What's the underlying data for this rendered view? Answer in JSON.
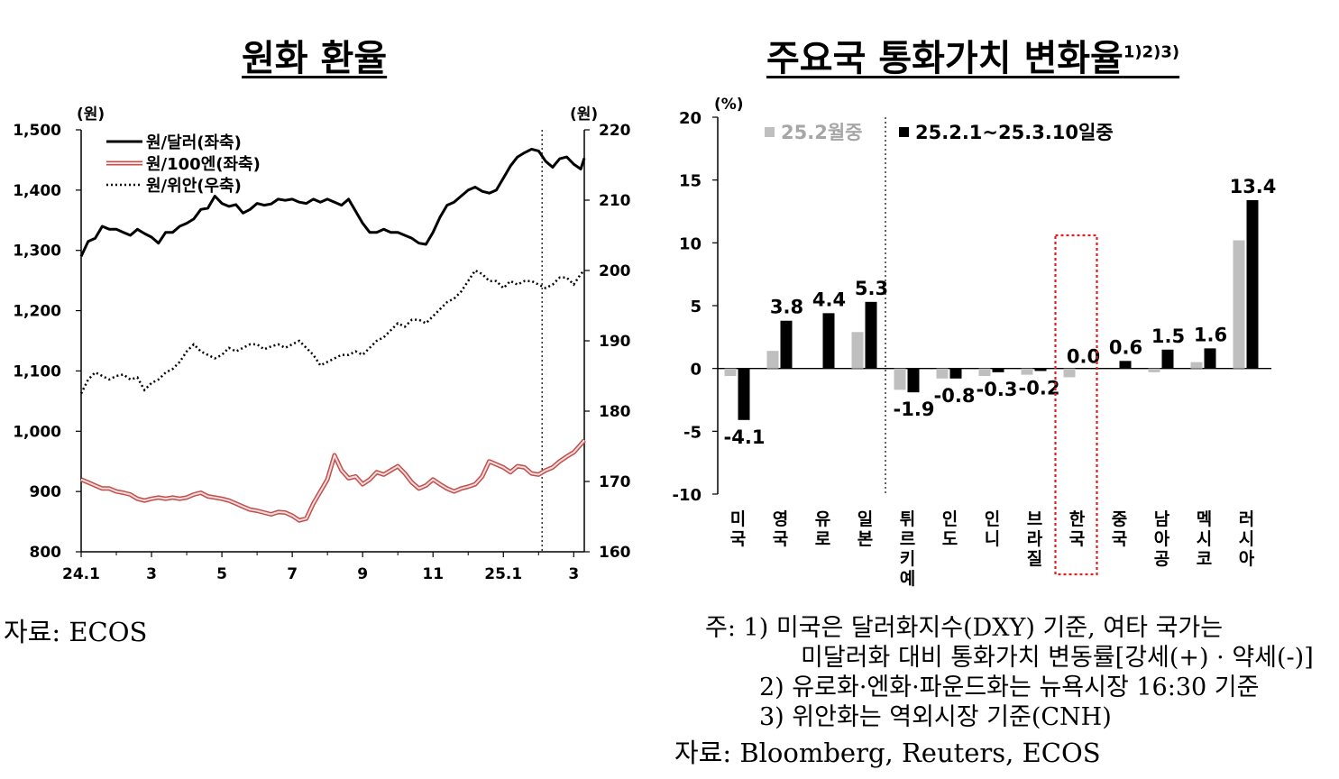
{
  "chart_data": [
    {
      "type": "line",
      "title": "원화 환율",
      "y_left_unit": "(원)",
      "y_right_unit": "(원)",
      "y_left_ticks": [
        "1,500",
        "1,400",
        "1,300",
        "1,200",
        "1,100",
        "1,000",
        "900",
        "800"
      ],
      "y_right_ticks": [
        "220",
        "210",
        "200",
        "190",
        "180",
        "170",
        "160"
      ],
      "ylim_left": [
        800,
        1500
      ],
      "ylim_right": [
        160,
        220
      ],
      "x_ticks": [
        "24.1",
        "3",
        "5",
        "7",
        "9",
        "11",
        "25.1",
        "3"
      ],
      "x_tick_pos": [
        0,
        2,
        4,
        6,
        8,
        10,
        12,
        14
      ],
      "x_range": [
        0,
        14.3
      ],
      "divider_x": 13.1,
      "legend": [
        "원/달러(좌축)",
        "원/100엔(좌축)",
        "원/위안(우축)"
      ],
      "series": [
        {
          "name": "원/달러(좌축)",
          "axis": "left",
          "style": "solid-black",
          "points": [
            [
              0,
              1290
            ],
            [
              0.2,
              1315
            ],
            [
              0.4,
              1320
            ],
            [
              0.6,
              1340
            ],
            [
              0.8,
              1335
            ],
            [
              1.0,
              1335
            ],
            [
              1.2,
              1330
            ],
            [
              1.4,
              1325
            ],
            [
              1.6,
              1335
            ],
            [
              1.8,
              1328
            ],
            [
              2.0,
              1322
            ],
            [
              2.2,
              1312
            ],
            [
              2.4,
              1330
            ],
            [
              2.6,
              1330
            ],
            [
              2.8,
              1340
            ],
            [
              3.0,
              1345
            ],
            [
              3.2,
              1352
            ],
            [
              3.4,
              1368
            ],
            [
              3.6,
              1370
            ],
            [
              3.8,
              1390
            ],
            [
              4.0,
              1378
            ],
            [
              4.2,
              1373
            ],
            [
              4.4,
              1376
            ],
            [
              4.6,
              1362
            ],
            [
              4.8,
              1368
            ],
            [
              5.0,
              1378
            ],
            [
              5.2,
              1375
            ],
            [
              5.4,
              1377
            ],
            [
              5.6,
              1385
            ],
            [
              5.8,
              1383
            ],
            [
              6.0,
              1385
            ],
            [
              6.2,
              1380
            ],
            [
              6.4,
              1378
            ],
            [
              6.6,
              1385
            ],
            [
              6.8,
              1380
            ],
            [
              7.0,
              1385
            ],
            [
              7.2,
              1380
            ],
            [
              7.4,
              1375
            ],
            [
              7.6,
              1385
            ],
            [
              7.8,
              1365
            ],
            [
              8.0,
              1345
            ],
            [
              8.2,
              1330
            ],
            [
              8.4,
              1330
            ],
            [
              8.6,
              1335
            ],
            [
              8.8,
              1330
            ],
            [
              9.0,
              1330
            ],
            [
              9.2,
              1325
            ],
            [
              9.4,
              1320
            ],
            [
              9.6,
              1312
            ],
            [
              9.8,
              1310
            ],
            [
              10.0,
              1330
            ],
            [
              10.2,
              1355
            ],
            [
              10.4,
              1375
            ],
            [
              10.6,
              1380
            ],
            [
              10.8,
              1390
            ],
            [
              11.0,
              1400
            ],
            [
              11.2,
              1405
            ],
            [
              11.4,
              1398
            ],
            [
              11.6,
              1395
            ],
            [
              11.8,
              1400
            ],
            [
              12.0,
              1420
            ],
            [
              12.2,
              1440
            ],
            [
              12.4,
              1455
            ],
            [
              12.6,
              1462
            ],
            [
              12.8,
              1468
            ],
            [
              13.0,
              1465
            ],
            [
              13.2,
              1448
            ],
            [
              13.4,
              1438
            ],
            [
              13.6,
              1452
            ],
            [
              13.8,
              1455
            ],
            [
              14.0,
              1443
            ],
            [
              14.2,
              1435
            ],
            [
              14.3,
              1453
            ]
          ]
        },
        {
          "name": "원/100엔(좌축)",
          "axis": "left",
          "style": "double-red",
          "points": [
            [
              0,
              920
            ],
            [
              0.2,
              915
            ],
            [
              0.4,
              910
            ],
            [
              0.6,
              905
            ],
            [
              0.8,
              905
            ],
            [
              1.0,
              900
            ],
            [
              1.2,
              898
            ],
            [
              1.4,
              895
            ],
            [
              1.6,
              888
            ],
            [
              1.8,
              885
            ],
            [
              2.0,
              888
            ],
            [
              2.2,
              890
            ],
            [
              2.4,
              888
            ],
            [
              2.6,
              890
            ],
            [
              2.8,
              888
            ],
            [
              3.0,
              890
            ],
            [
              3.2,
              895
            ],
            [
              3.4,
              898
            ],
            [
              3.6,
              892
            ],
            [
              3.8,
              890
            ],
            [
              4.0,
              888
            ],
            [
              4.2,
              885
            ],
            [
              4.4,
              880
            ],
            [
              4.6,
              875
            ],
            [
              4.8,
              870
            ],
            [
              5.0,
              868
            ],
            [
              5.2,
              865
            ],
            [
              5.4,
              862
            ],
            [
              5.6,
              866
            ],
            [
              5.8,
              865
            ],
            [
              6.0,
              860
            ],
            [
              6.2,
              852
            ],
            [
              6.4,
              855
            ],
            [
              6.6,
              880
            ],
            [
              6.8,
              900
            ],
            [
              7.0,
              920
            ],
            [
              7.2,
              960
            ],
            [
              7.4,
              935
            ],
            [
              7.6,
              922
            ],
            [
              7.8,
              925
            ],
            [
              8.0,
              912
            ],
            [
              8.2,
              920
            ],
            [
              8.4,
              932
            ],
            [
              8.6,
              928
            ],
            [
              8.8,
              935
            ],
            [
              9.0,
              942
            ],
            [
              9.2,
              930
            ],
            [
              9.4,
              915
            ],
            [
              9.6,
              905
            ],
            [
              9.8,
              910
            ],
            [
              10.0,
              920
            ],
            [
              10.2,
              912
            ],
            [
              10.4,
              905
            ],
            [
              10.6,
              900
            ],
            [
              10.8,
              905
            ],
            [
              11.0,
              908
            ],
            [
              11.2,
              912
            ],
            [
              11.4,
              925
            ],
            [
              11.6,
              950
            ],
            [
              11.8,
              945
            ],
            [
              12.0,
              940
            ],
            [
              12.2,
              932
            ],
            [
              12.4,
              942
            ],
            [
              12.6,
              940
            ],
            [
              12.8,
              930
            ],
            [
              13.0,
              928
            ],
            [
              13.2,
              935
            ],
            [
              13.4,
              940
            ],
            [
              13.6,
              950
            ],
            [
              13.8,
              958
            ],
            [
              14.0,
              965
            ],
            [
              14.2,
              978
            ],
            [
              14.3,
              985
            ]
          ]
        },
        {
          "name": "원/위안(우축)",
          "axis": "right",
          "style": "dotted-black",
          "points": [
            [
              0,
              182.5
            ],
            [
              0.2,
              184.5
            ],
            [
              0.4,
              185.5
            ],
            [
              0.6,
              185
            ],
            [
              0.8,
              184.5
            ],
            [
              1.0,
              185
            ],
            [
              1.2,
              185.2
            ],
            [
              1.4,
              184.5
            ],
            [
              1.6,
              184.8
            ],
            [
              1.8,
              183
            ],
            [
              2.0,
              184
            ],
            [
              2.2,
              184.5
            ],
            [
              2.4,
              185.5
            ],
            [
              2.6,
              186
            ],
            [
              2.8,
              187
            ],
            [
              3.0,
              188.5
            ],
            [
              3.2,
              189.5
            ],
            [
              3.4,
              188.5
            ],
            [
              3.6,
              188
            ],
            [
              3.8,
              187.5
            ],
            [
              4.0,
              188
            ],
            [
              4.2,
              189
            ],
            [
              4.4,
              188.5
            ],
            [
              4.6,
              189
            ],
            [
              4.8,
              189.5
            ],
            [
              5.0,
              189.5
            ],
            [
              5.2,
              188.8
            ],
            [
              5.4,
              189.2
            ],
            [
              5.6,
              189.5
            ],
            [
              5.8,
              189
            ],
            [
              6.0,
              189.5
            ],
            [
              6.2,
              190
            ],
            [
              6.4,
              189
            ],
            [
              6.6,
              188
            ],
            [
              6.8,
              186.5
            ],
            [
              7.0,
              187
            ],
            [
              7.2,
              187.5
            ],
            [
              7.4,
              188
            ],
            [
              7.6,
              188
            ],
            [
              7.8,
              188.5
            ],
            [
              8.0,
              188
            ],
            [
              8.2,
              189
            ],
            [
              8.4,
              190
            ],
            [
              8.6,
              190.5
            ],
            [
              8.8,
              191.5
            ],
            [
              9.0,
              192.5
            ],
            [
              9.2,
              192
            ],
            [
              9.4,
              193
            ],
            [
              9.6,
              193
            ],
            [
              9.8,
              192.5
            ],
            [
              10.0,
              193.5
            ],
            [
              10.2,
              194.5
            ],
            [
              10.4,
              195.5
            ],
            [
              10.6,
              196
            ],
            [
              10.8,
              197
            ],
            [
              11.0,
              198.5
            ],
            [
              11.2,
              200
            ],
            [
              11.4,
              199.5
            ],
            [
              11.6,
              198.5
            ],
            [
              11.8,
              198.5
            ],
            [
              12.0,
              197.5
            ],
            [
              12.2,
              198.5
            ],
            [
              12.4,
              198
            ],
            [
              12.6,
              198.5
            ],
            [
              12.8,
              198.5
            ],
            [
              13.0,
              198
            ],
            [
              13.2,
              197.5
            ],
            [
              13.4,
              198
            ],
            [
              13.6,
              199
            ],
            [
              13.8,
              199
            ],
            [
              14.0,
              198
            ],
            [
              14.2,
              199.5
            ],
            [
              14.3,
              200
            ]
          ]
        }
      ]
    },
    {
      "type": "bar",
      "title": "주요국 통화가치 변화율",
      "title_sup": "1)2)3)",
      "y_unit": "(%)",
      "y_ticks": [
        "20",
        "15",
        "10",
        "5",
        "0",
        "-5",
        "-10"
      ],
      "ylim": [
        -10,
        20
      ],
      "categories": [
        "미국",
        "영국",
        "유로",
        "일본",
        "튀르키예",
        "인도",
        "인니",
        "브라질",
        "한국",
        "중국",
        "남아공",
        "멕시코",
        "러시아"
      ],
      "highlight_category": "한국",
      "divider_after_index": 3,
      "legend": [
        "25.2월중",
        "25.2.1~25.3.10일중"
      ],
      "series": [
        {
          "name": "25.2월중",
          "color": "#bfbfbf",
          "values": [
            -0.6,
            1.4,
            0.0,
            2.9,
            -1.7,
            -0.8,
            -0.6,
            -0.5,
            -0.7,
            0.0,
            -0.3,
            0.5,
            10.2
          ]
        },
        {
          "name": "25.2.1~25.3.10일중",
          "color": "#000000",
          "values": [
            -4.1,
            3.8,
            4.4,
            5.3,
            -1.9,
            -0.8,
            -0.3,
            -0.2,
            0.0,
            0.6,
            1.5,
            1.6,
            13.4
          ]
        }
      ],
      "data_labels": [
        "-4.1",
        "3.8",
        "4.4",
        "5.3",
        "-1.9",
        "-0.8",
        "-0.3",
        "-0.2",
        "0.0",
        "0.6",
        "1.5",
        "1.6",
        "13.4"
      ]
    }
  ],
  "left_source": "자료: ECOS",
  "notes": {
    "line1": "주: 1) 미국은 달러화지수(DXY) 기준, 여타 국가는",
    "line2": "미달러화 대비 통화가치 변동률[강세(+) · 약세(-)]",
    "line3": "2) 유로화·엔화·파운드화는 뉴욕시장 16:30 기준",
    "line4": "3) 위안화는 역외시장 기준(CNH)",
    "source": "자료: Bloomberg, Reuters, ECOS"
  }
}
